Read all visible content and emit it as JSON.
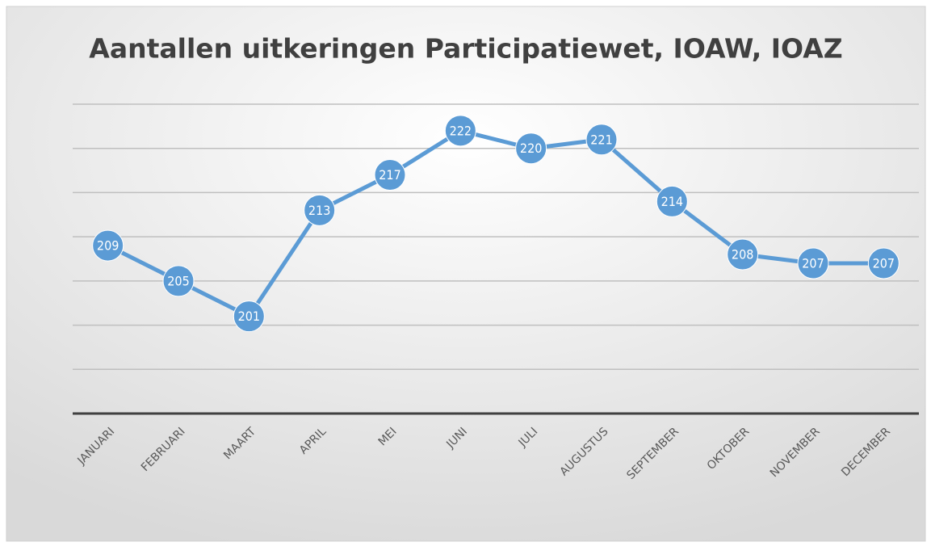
{
  "chart_data": {
    "type": "line",
    "title": "Aantallen uitkeringen Participatiewet, IOAW, IOAZ",
    "categories": [
      "JANUARI",
      "FEBRUARI",
      "MAART",
      "APRIL",
      "MEI",
      "JUNI",
      "JULI",
      "AUGUSTUS",
      "SEPTEMBER",
      "OKTOBER",
      "NOVEMBER",
      "DECEMBER"
    ],
    "values": [
      209,
      205,
      201,
      213,
      217,
      222,
      220,
      221,
      214,
      208,
      207,
      207
    ],
    "color": "#5b9bd5",
    "ylim": [
      190,
      225
    ],
    "yticks": [
      190,
      195,
      200,
      205,
      210,
      215,
      220,
      225
    ],
    "grid": true
  }
}
